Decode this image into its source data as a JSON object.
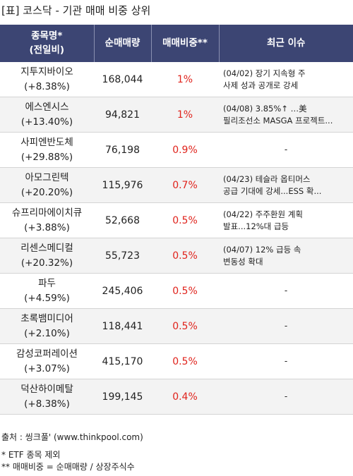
{
  "title": "[표] 코스닥 - 기관 매매 비중 상위",
  "headers": {
    "name_line1": "종목명*",
    "name_line2": "(전일비)",
    "volume": "순매매량",
    "ratio": "매매비중**",
    "issue": "최근 이슈"
  },
  "rows": [
    {
      "name": "지투지바이오",
      "change": "(+8.38%)",
      "volume": "168,044",
      "ratio": "1%",
      "issue_line1": "(04/02) 장기 지속형 주",
      "issue_line2": "사제 성과 공개로 강세"
    },
    {
      "name": "에스엔시스",
      "change": "(+13.40%)",
      "volume": "94,821",
      "ratio": "1%",
      "issue_line1": "(04/08) 3.85%↑ …美",
      "issue_line2": "필리조선소 MASGA 프로젝트..."
    },
    {
      "name": "사피엔반도체",
      "change": "(+29.88%)",
      "volume": "76,198",
      "ratio": "0.9%",
      "issue_line1": "-",
      "issue_line2": ""
    },
    {
      "name": "아모그린텍",
      "change": "(+20.20%)",
      "volume": "115,976",
      "ratio": "0.7%",
      "issue_line1": "(04/23) 테슬라 옵티머스",
      "issue_line2": " 공급 기대에 강세...ESS 확..."
    },
    {
      "name": "슈프리마에이치큐",
      "change": "(+3.88%)",
      "volume": "52,668",
      "ratio": "0.5%",
      "issue_line1": "(04/22) 주주환원 계획",
      "issue_line2": "발표...12%대 급등"
    },
    {
      "name": "리센스메디컬",
      "change": "(+20.32%)",
      "volume": "55,723",
      "ratio": "0.5%",
      "issue_line1": "(04/07) 12% 급등 속",
      "issue_line2": " 변동성 확대"
    },
    {
      "name": "파두",
      "change": "(+4.59%)",
      "volume": "245,406",
      "ratio": "0.5%",
      "issue_line1": "-",
      "issue_line2": ""
    },
    {
      "name": "초록뱀미디어",
      "change": "(+2.10%)",
      "volume": "118,441",
      "ratio": "0.5%",
      "issue_line1": "-",
      "issue_line2": ""
    },
    {
      "name": "감성코퍼레이션",
      "change": "(+3.07%)",
      "volume": "415,170",
      "ratio": "0.5%",
      "issue_line1": "-",
      "issue_line2": ""
    },
    {
      "name": "덕산하이메탈",
      "change": "(+8.38%)",
      "volume": "199,145",
      "ratio": "0.4%",
      "issue_line1": "-",
      "issue_line2": ""
    }
  ],
  "footer": {
    "source": "출처 : 씽크풀' (www.thinkpool.com)",
    "note1": "* ETF 종목 제외",
    "note2": "** 매매비중 = 순매매량 / 상장주식수"
  },
  "colors": {
    "header_bg": "#3c4573",
    "ratio_text": "#e0231c",
    "row_alt_bg": "#f3f3f3"
  }
}
